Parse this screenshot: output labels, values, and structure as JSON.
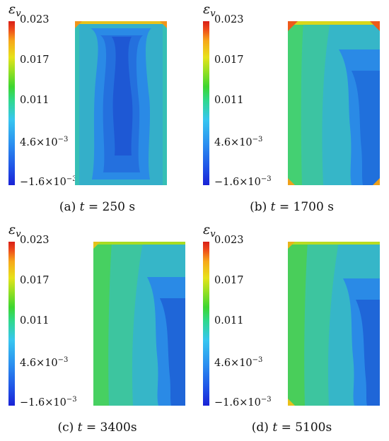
{
  "colorbar": {
    "symbol": "ε",
    "subscript": "v",
    "ticks": [
      "0.023",
      "0.017",
      "0.011",
      "4.6×10",
      "−1.6×10"
    ],
    "tick_exponents": [
      "",
      "",
      "",
      "−3",
      "−3"
    ]
  },
  "panels": [
    {
      "caption_prefix": "(a) ",
      "caption_var": "t",
      "caption_value": " = 250 s"
    },
    {
      "caption_prefix": "(b) ",
      "caption_var": "t",
      "caption_value": " = 1700 s"
    },
    {
      "caption_prefix": "(c) ",
      "caption_var": "t",
      "caption_value": " = 3400s"
    },
    {
      "caption_prefix": "(d) ",
      "caption_var": "t",
      "caption_value": " = 5100s"
    }
  ],
  "colors": {
    "min": "#1a22d6",
    "low": "#2b8ff0",
    "mid": "#3dd630",
    "high": "#e7e21a",
    "max": "#d81f18"
  }
}
